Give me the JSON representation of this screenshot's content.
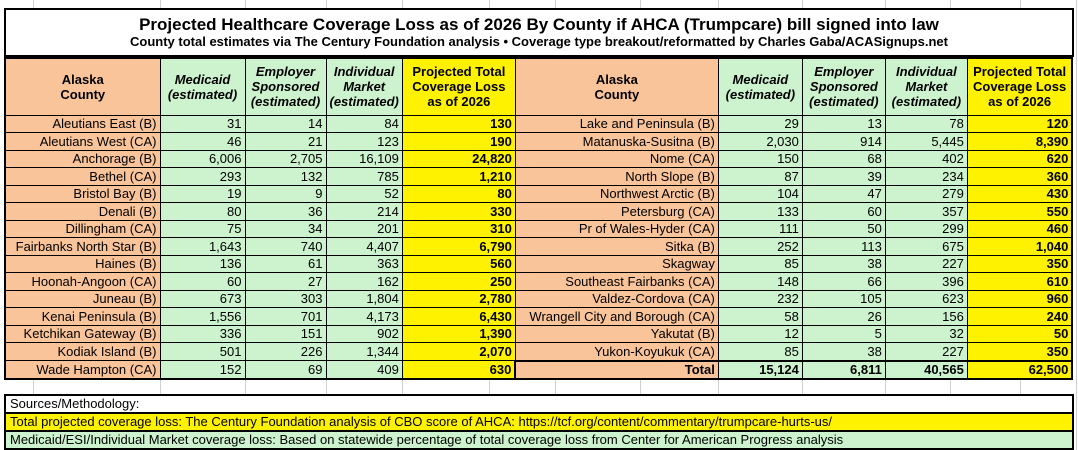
{
  "page": {
    "title": "Projected Healthcare Coverage Loss as of 2026 By County if AHCA (Trumpcare) bill signed into law",
    "subtitle": "County total estimates via The Century Foundation analysis • Coverage type breakout/reformatted by Charles Gaba/ACASignups.net"
  },
  "headers": {
    "county": "Alaska\nCounty",
    "medicaid": "Medicaid\n(estimated)",
    "employer": "Employer\nSponsored\n(estimated)",
    "individual": "Individual\nMarket\n(estimated)",
    "total": "Projected Total\nCoverage Loss\nas of 2026"
  },
  "rows_left": [
    {
      "county": "Aleutians East (B)",
      "medicaid": "31",
      "employer": "14",
      "individual": "84",
      "total": "130"
    },
    {
      "county": "Aleutians West (CA)",
      "medicaid": "46",
      "employer": "21",
      "individual": "123",
      "total": "190"
    },
    {
      "county": "Anchorage (B)",
      "medicaid": "6,006",
      "employer": "2,705",
      "individual": "16,109",
      "total": "24,820"
    },
    {
      "county": "Bethel (CA)",
      "medicaid": "293",
      "employer": "132",
      "individual": "785",
      "total": "1,210"
    },
    {
      "county": "Bristol Bay (B)",
      "medicaid": "19",
      "employer": "9",
      "individual": "52",
      "total": "80"
    },
    {
      "county": "Denali (B)",
      "medicaid": "80",
      "employer": "36",
      "individual": "214",
      "total": "330"
    },
    {
      "county": "Dillingham (CA)",
      "medicaid": "75",
      "employer": "34",
      "individual": "201",
      "total": "310"
    },
    {
      "county": "Fairbanks North Star (B)",
      "medicaid": "1,643",
      "employer": "740",
      "individual": "4,407",
      "total": "6,790"
    },
    {
      "county": "Haines (B)",
      "medicaid": "136",
      "employer": "61",
      "individual": "363",
      "total": "560"
    },
    {
      "county": "Hoonah-Angoon (CA)",
      "medicaid": "60",
      "employer": "27",
      "individual": "162",
      "total": "250"
    },
    {
      "county": "Juneau (B)",
      "medicaid": "673",
      "employer": "303",
      "individual": "1,804",
      "total": "2,780"
    },
    {
      "county": "Kenai Peninsula (B)",
      "medicaid": "1,556",
      "employer": "701",
      "individual": "4,173",
      "total": "6,430"
    },
    {
      "county": "Ketchikan Gateway (B)",
      "medicaid": "336",
      "employer": "151",
      "individual": "902",
      "total": "1,390"
    },
    {
      "county": "Kodiak Island (B)",
      "medicaid": "501",
      "employer": "226",
      "individual": "1,344",
      "total": "2,070"
    },
    {
      "county": "Wade Hampton (CA)",
      "medicaid": "152",
      "employer": "69",
      "individual": "409",
      "total": "630"
    }
  ],
  "rows_right": [
    {
      "county": "Lake and Peninsula (B)",
      "medicaid": "29",
      "employer": "13",
      "individual": "78",
      "total": "120"
    },
    {
      "county": "Matanuska-Susitna (B)",
      "medicaid": "2,030",
      "employer": "914",
      "individual": "5,445",
      "total": "8,390"
    },
    {
      "county": "Nome (CA)",
      "medicaid": "150",
      "employer": "68",
      "individual": "402",
      "total": "620"
    },
    {
      "county": "North Slope (B)",
      "medicaid": "87",
      "employer": "39",
      "individual": "234",
      "total": "360"
    },
    {
      "county": "Northwest Arctic (B)",
      "medicaid": "104",
      "employer": "47",
      "individual": "279",
      "total": "430"
    },
    {
      "county": "Petersburg (CA)",
      "medicaid": "133",
      "employer": "60",
      "individual": "357",
      "total": "550"
    },
    {
      "county": "Pr of Wales-Hyder (CA)",
      "medicaid": "111",
      "employer": "50",
      "individual": "299",
      "total": "460"
    },
    {
      "county": "Sitka (B)",
      "medicaid": "252",
      "employer": "113",
      "individual": "675",
      "total": "1,040"
    },
    {
      "county": "Skagway",
      "medicaid": "85",
      "employer": "38",
      "individual": "227",
      "total": "350"
    },
    {
      "county": "Southeast Fairbanks (CA)",
      "medicaid": "148",
      "employer": "66",
      "individual": "396",
      "total": "610"
    },
    {
      "county": "Valdez-Cordova (CA)",
      "medicaid": "232",
      "employer": "105",
      "individual": "623",
      "total": "960"
    },
    {
      "county": "Wrangell City and Borough (CA)",
      "medicaid": "58",
      "employer": "26",
      "individual": "156",
      "total": "240"
    },
    {
      "county": "Yakutat (B)",
      "medicaid": "12",
      "employer": "5",
      "individual": "32",
      "total": "50"
    },
    {
      "county": "Yukon-Koyukuk (CA)",
      "medicaid": "85",
      "employer": "38",
      "individual": "227",
      "total": "350"
    }
  ],
  "total_row": {
    "label": "Total",
    "medicaid": "15,124",
    "employer": "6,811",
    "individual": "40,565",
    "total": "62,500"
  },
  "sources": {
    "heading": "Sources/Methodology:",
    "total_loss": "Total projected coverage loss: The Century Foundation analysis of CBO score of AHCA: https://tcf.org/content/commentary/trumpcare-hurts-us/",
    "breakout": "Medicaid/ESI/Individual Market coverage loss: Based on statewide percentage of total coverage loss from Center for American Progress analysis"
  },
  "colors": {
    "county_bg": "#F9C499",
    "value_bg": "#CCF3CE",
    "highlight_bg": "#FFF200",
    "border": "#000000",
    "gridline": "#CFCFCF"
  }
}
